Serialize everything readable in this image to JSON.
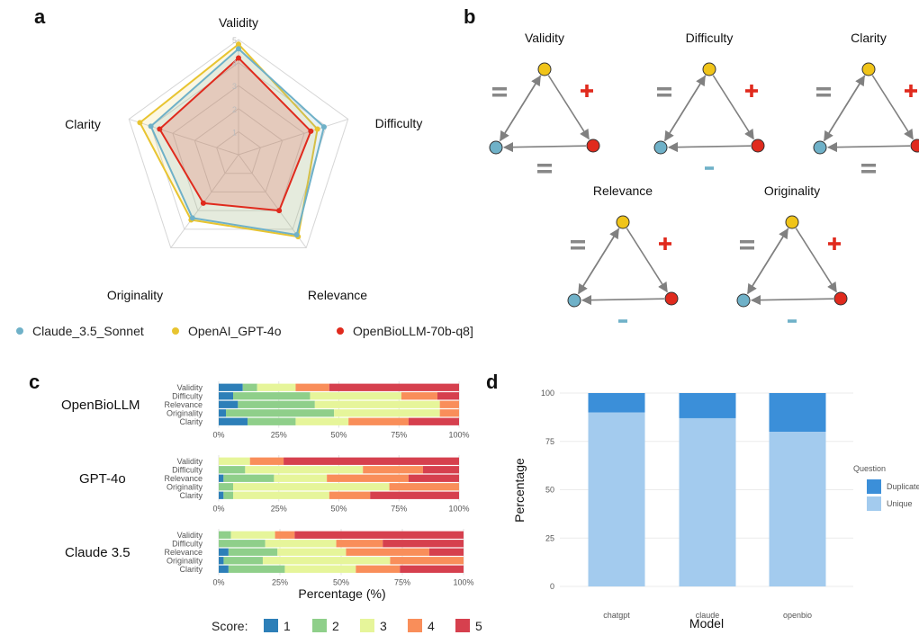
{
  "panel_labels": {
    "a": "a",
    "b": "b",
    "c": "c",
    "d": "d"
  },
  "chart_data": [
    {
      "id": "radar",
      "type": "radar",
      "axes": [
        "Validity",
        "Difficulty",
        "Relevance",
        "Originality",
        "Clarity"
      ],
      "rlim": [
        0,
        5
      ],
      "rticks": [
        "1",
        "2",
        "3",
        "4",
        "5"
      ],
      "series": [
        {
          "name": "Claude_3.5_Sonnet",
          "color": "#6fb1c8",
          "values": [
            4.6,
            3.9,
            4.3,
            3.4,
            4.0
          ]
        },
        {
          "name": "OpenAI_GPT-4o",
          "color": "#e8c430",
          "values": [
            4.8,
            3.6,
            4.4,
            3.5,
            4.5
          ]
        },
        {
          "name": "OpenBioLLM-70b-q8]",
          "color": "#e02a1d",
          "values": [
            4.2,
            3.3,
            3.0,
            2.6,
            3.6
          ]
        }
      ]
    },
    {
      "id": "triangles",
      "type": "diagram",
      "node_colors": {
        "top": "#f0c419",
        "left": "#6fb1c8",
        "right": "#e02a1d"
      },
      "sign_colors": {
        "=": "#888888",
        "+": "#e02a1d",
        "-": "#6fb1c8"
      },
      "items": [
        {
          "title": "Validity",
          "left_sign": "=",
          "right_sign": "+",
          "bottom_sign": "="
        },
        {
          "title": "Difficulty",
          "left_sign": "=",
          "right_sign": "+",
          "bottom_sign": "-"
        },
        {
          "title": "Clarity",
          "left_sign": "=",
          "right_sign": "+",
          "bottom_sign": "="
        },
        {
          "title": "Relevance",
          "left_sign": "=",
          "right_sign": "+",
          "bottom_sign": "-"
        },
        {
          "title": "Originality",
          "left_sign": "=",
          "right_sign": "+",
          "bottom_sign": "-"
        }
      ]
    },
    {
      "id": "stacked",
      "type": "bar",
      "orientation": "horizontal",
      "stacked": true,
      "xlabel": "Percentage (%)",
      "xticks": [
        "0%",
        "25%",
        "50%",
        "75%",
        "100%"
      ],
      "categories": [
        "Validity",
        "Difficulty",
        "Relevance",
        "Originality",
        "Clarity"
      ],
      "legend_title": "Score:",
      "score_labels": [
        "1",
        "2",
        "3",
        "4",
        "5"
      ],
      "score_colors": [
        "#2d7fb8",
        "#8fcf8a",
        "#e6f59a",
        "#f98e5a",
        "#d6404e"
      ],
      "groups": [
        {
          "name": "OpenBioLLM",
          "values": [
            [
              10,
              6,
              16,
              14,
              54
            ],
            [
              6,
              32,
              38,
              15,
              9
            ],
            [
              8,
              32,
              52,
              8,
              0
            ],
            [
              3,
              45,
              44,
              8,
              0
            ],
            [
              12,
              20,
              22,
              25,
              21
            ]
          ]
        },
        {
          "name": "GPT-4o",
          "values": [
            [
              0,
              0,
              13,
              14,
              73
            ],
            [
              0,
              11,
              49,
              25,
              15
            ],
            [
              2,
              21,
              22,
              34,
              21
            ],
            [
              0,
              6,
              65,
              29,
              0
            ],
            [
              2,
              4,
              40,
              17,
              37
            ]
          ]
        },
        {
          "name": "Claude 3.5",
          "values": [
            [
              0,
              5,
              18,
              8,
              69
            ],
            [
              0,
              19,
              29,
              19,
              33
            ],
            [
              4,
              20,
              28,
              34,
              14
            ],
            [
              2,
              16,
              52,
              30,
              0
            ],
            [
              4,
              23,
              29,
              18,
              26
            ]
          ]
        }
      ]
    },
    {
      "id": "duplicates",
      "type": "bar",
      "stacked": true,
      "xlabel": "Model",
      "ylabel": "Percentage",
      "categories": [
        "chatgpt",
        "claude",
        "openbio"
      ],
      "yticks": [
        "0",
        "25",
        "50",
        "75",
        "100"
      ],
      "ylim": [
        0,
        100
      ],
      "legend_title": "Question",
      "series": [
        {
          "name": "Unique",
          "color": "#a3cbee",
          "values": [
            90,
            87,
            80
          ]
        },
        {
          "name": "Duplicate",
          "color": "#3b8fd9",
          "values": [
            10,
            13,
            20
          ]
        }
      ]
    }
  ]
}
